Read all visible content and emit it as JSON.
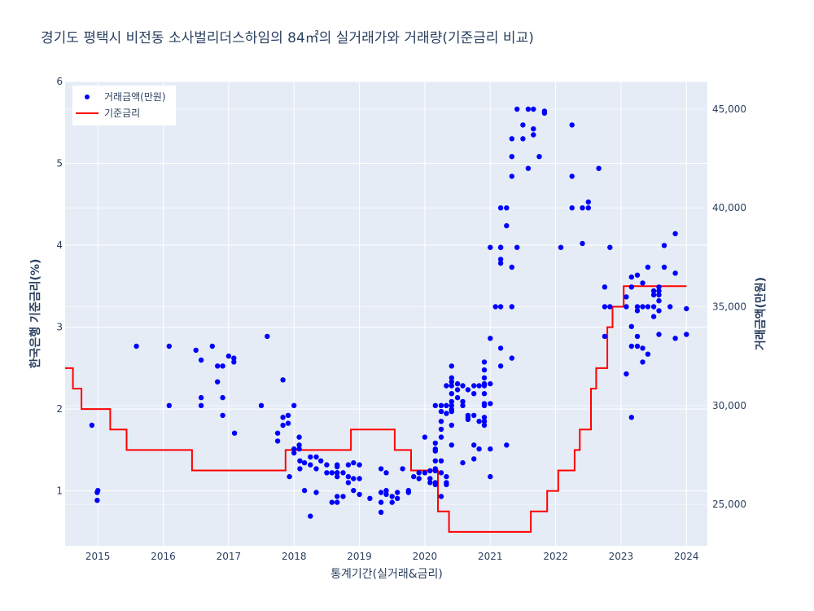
{
  "chart_data": {
    "type": "scatter+line",
    "title": "경기도 평택시 비전동 소사벌리더스하임의 84㎡의 실거래가와 거래량(기준금리 비교)",
    "xlabel": "통계기간(실거래&금리)",
    "ylabel_left": "한국은행 기준금리(%)",
    "ylabel_right": "거래금액(만원)",
    "x_range": [
      2014.5,
      2024.32
    ],
    "y_left_range": [
      0.33,
      6.0
    ],
    "y_right_range": [
      22900,
      46400
    ],
    "x_ticks": [
      2015,
      2016,
      2017,
      2018,
      2019,
      2020,
      2021,
      2022,
      2023,
      2024
    ],
    "x_tick_labels": [
      "2015",
      "2016",
      "2017",
      "2018",
      "2019",
      "2020",
      "2021",
      "2022",
      "2023",
      "2024"
    ],
    "y_left_ticks": [
      1,
      2,
      3,
      4,
      5,
      6
    ],
    "y_left_tick_labels": [
      "1",
      "2",
      "3",
      "4",
      "5",
      "6"
    ],
    "y_right_ticks": [
      25000,
      30000,
      35000,
      40000,
      45000
    ],
    "y_right_tick_labels": [
      "25,000",
      "30,000",
      "35,000",
      "40,000",
      "45,000"
    ],
    "grid": true,
    "legend_position": "top-left",
    "series": [
      {
        "name": "거래금액(만원)",
        "type": "scatter",
        "axis": "right",
        "color": "#0000ff",
        "points": [
          [
            2014.91,
            29000
          ],
          [
            2014.99,
            25200
          ],
          [
            2014.99,
            25600
          ],
          [
            2015.0,
            25700
          ],
          [
            2015.59,
            33000
          ],
          [
            2016.09,
            33000
          ],
          [
            2016.09,
            30000
          ],
          [
            2016.5,
            32800
          ],
          [
            2016.58,
            32300
          ],
          [
            2016.58,
            30000
          ],
          [
            2016.58,
            30400
          ],
          [
            2016.75,
            33000
          ],
          [
            2016.83,
            31200
          ],
          [
            2016.83,
            32000
          ],
          [
            2016.91,
            32000
          ],
          [
            2016.91,
            30400
          ],
          [
            2016.91,
            29500
          ],
          [
            2017.0,
            32500
          ],
          [
            2017.08,
            32400
          ],
          [
            2017.08,
            32200
          ],
          [
            2017.09,
            28600
          ],
          [
            2017.5,
            30000
          ],
          [
            2017.59,
            33500
          ],
          [
            2017.75,
            28600
          ],
          [
            2017.75,
            28200
          ],
          [
            2017.83,
            31300
          ],
          [
            2017.83,
            29400
          ],
          [
            2017.83,
            29000
          ],
          [
            2017.91,
            29500
          ],
          [
            2017.91,
            29100
          ],
          [
            2017.93,
            26400
          ],
          [
            2018.0,
            30000
          ],
          [
            2018.0,
            27800
          ],
          [
            2018.0,
            27600
          ],
          [
            2018.08,
            28000
          ],
          [
            2018.08,
            28400
          ],
          [
            2018.08,
            27800
          ],
          [
            2018.09,
            27200
          ],
          [
            2018.09,
            26800
          ],
          [
            2018.16,
            25700
          ],
          [
            2018.16,
            27100
          ],
          [
            2018.25,
            24400
          ],
          [
            2018.25,
            27000
          ],
          [
            2018.25,
            27400
          ],
          [
            2018.34,
            27400
          ],
          [
            2018.34,
            26800
          ],
          [
            2018.34,
            25600
          ],
          [
            2018.41,
            27200
          ],
          [
            2018.5,
            27000
          ],
          [
            2018.5,
            26600
          ],
          [
            2018.58,
            25100
          ],
          [
            2018.58,
            26600
          ],
          [
            2018.66,
            26400
          ],
          [
            2018.66,
            26600
          ],
          [
            2018.66,
            26900
          ],
          [
            2018.66,
            27000
          ],
          [
            2018.66,
            26600
          ],
          [
            2018.66,
            25400
          ],
          [
            2018.66,
            25100
          ],
          [
            2018.75,
            26600
          ],
          [
            2018.75,
            25400
          ],
          [
            2018.83,
            27000
          ],
          [
            2018.83,
            26400
          ],
          [
            2018.83,
            26100
          ],
          [
            2018.91,
            27100
          ],
          [
            2018.91,
            26300
          ],
          [
            2018.91,
            25700
          ],
          [
            2019.0,
            27000
          ],
          [
            2019.0,
            26300
          ],
          [
            2019.0,
            25500
          ],
          [
            2019.16,
            25300
          ],
          [
            2019.33,
            26800
          ],
          [
            2019.33,
            25600
          ],
          [
            2019.33,
            25100
          ],
          [
            2019.33,
            24600
          ],
          [
            2019.41,
            26600
          ],
          [
            2019.41,
            25700
          ],
          [
            2019.41,
            25500
          ],
          [
            2019.5,
            25100
          ],
          [
            2019.5,
            25400
          ],
          [
            2019.58,
            25300
          ],
          [
            2019.58,
            25600
          ],
          [
            2019.66,
            26800
          ],
          [
            2019.75,
            25600
          ],
          [
            2019.75,
            25700
          ],
          [
            2019.83,
            26400
          ],
          [
            2019.91,
            26300
          ],
          [
            2019.91,
            26600
          ],
          [
            2020.0,
            26600
          ],
          [
            2020.0,
            28400
          ],
          [
            2020.08,
            26300
          ],
          [
            2020.08,
            26700
          ],
          [
            2020.08,
            26100
          ],
          [
            2020.16,
            26700
          ],
          [
            2020.16,
            26100
          ],
          [
            2020.16,
            26000
          ],
          [
            2020.16,
            26800
          ],
          [
            2020.16,
            27200
          ],
          [
            2020.16,
            27700
          ],
          [
            2020.16,
            28100
          ],
          [
            2020.16,
            27800
          ],
          [
            2020.16,
            30000
          ],
          [
            2020.25,
            30000
          ],
          [
            2020.25,
            27200
          ],
          [
            2020.25,
            26600
          ],
          [
            2020.25,
            25400
          ],
          [
            2020.25,
            28800
          ],
          [
            2020.25,
            29200
          ],
          [
            2020.25,
            29700
          ],
          [
            2020.25,
            28400
          ],
          [
            2020.33,
            31000
          ],
          [
            2020.33,
            26400
          ],
          [
            2020.33,
            26100
          ],
          [
            2020.33,
            26000
          ],
          [
            2020.33,
            30000
          ],
          [
            2020.33,
            29600
          ],
          [
            2020.41,
            29700
          ],
          [
            2020.41,
            29800
          ],
          [
            2020.41,
            30000
          ],
          [
            2020.41,
            30200
          ],
          [
            2020.41,
            30600
          ],
          [
            2020.41,
            31000
          ],
          [
            2020.41,
            31200
          ],
          [
            2020.41,
            31400
          ],
          [
            2020.41,
            32000
          ],
          [
            2020.41,
            29000
          ],
          [
            2020.41,
            28000
          ],
          [
            2020.5,
            31100
          ],
          [
            2020.5,
            30800
          ],
          [
            2020.5,
            30400
          ],
          [
            2020.58,
            30200
          ],
          [
            2020.58,
            31000
          ],
          [
            2020.58,
            27100
          ],
          [
            2020.58,
            30000
          ],
          [
            2020.66,
            29400
          ],
          [
            2020.66,
            29300
          ],
          [
            2020.66,
            30800
          ],
          [
            2020.66,
            29500
          ],
          [
            2020.75,
            29500
          ],
          [
            2020.75,
            28000
          ],
          [
            2020.75,
            27300
          ],
          [
            2020.75,
            30600
          ],
          [
            2020.75,
            31000
          ],
          [
            2020.83,
            31000
          ],
          [
            2020.83,
            29200
          ],
          [
            2020.83,
            27800
          ],
          [
            2020.91,
            29200
          ],
          [
            2020.91,
            29000
          ],
          [
            2020.91,
            30000
          ],
          [
            2020.91,
            30600
          ],
          [
            2020.91,
            31000
          ],
          [
            2020.91,
            31100
          ],
          [
            2020.91,
            31400
          ],
          [
            2020.91,
            31800
          ],
          [
            2020.91,
            32200
          ],
          [
            2020.91,
            30100
          ],
          [
            2020.91,
            29400
          ],
          [
            2021.0,
            30100
          ],
          [
            2021.0,
            31100
          ],
          [
            2021.0,
            33400
          ],
          [
            2021.0,
            27800
          ],
          [
            2021.0,
            26400
          ],
          [
            2021.0,
            38000
          ],
          [
            2021.08,
            35000
          ],
          [
            2021.16,
            32000
          ],
          [
            2021.16,
            32900
          ],
          [
            2021.16,
            35000
          ],
          [
            2021.16,
            37200
          ],
          [
            2021.16,
            37400
          ],
          [
            2021.16,
            38000
          ],
          [
            2021.16,
            38000
          ],
          [
            2021.16,
            40000
          ],
          [
            2021.25,
            40000
          ],
          [
            2021.25,
            39100
          ],
          [
            2021.25,
            28000
          ],
          [
            2021.33,
            32400
          ],
          [
            2021.33,
            35000
          ],
          [
            2021.33,
            37000
          ],
          [
            2021.33,
            41600
          ],
          [
            2021.33,
            42600
          ],
          [
            2021.33,
            43500
          ],
          [
            2021.41,
            45000
          ],
          [
            2021.41,
            38000
          ],
          [
            2021.5,
            43500
          ],
          [
            2021.5,
            44200
          ],
          [
            2021.58,
            42000
          ],
          [
            2021.58,
            45000
          ],
          [
            2021.66,
            45000
          ],
          [
            2021.66,
            44000
          ],
          [
            2021.66,
            43700
          ],
          [
            2021.75,
            42600
          ],
          [
            2021.83,
            44900
          ],
          [
            2021.83,
            44800
          ],
          [
            2022.08,
            38000
          ],
          [
            2022.25,
            44200
          ],
          [
            2022.25,
            41600
          ],
          [
            2022.25,
            40000
          ],
          [
            2022.41,
            38200
          ],
          [
            2022.41,
            40000
          ],
          [
            2022.5,
            40000
          ],
          [
            2022.5,
            40300
          ],
          [
            2022.66,
            42000
          ],
          [
            2022.75,
            35000
          ],
          [
            2022.75,
            33500
          ],
          [
            2022.75,
            36000
          ],
          [
            2022.83,
            35000
          ],
          [
            2022.83,
            38000
          ],
          [
            2023.08,
            31600
          ],
          [
            2023.08,
            35500
          ],
          [
            2023.08,
            35000
          ],
          [
            2023.16,
            29400
          ],
          [
            2023.16,
            34000
          ],
          [
            2023.16,
            33000
          ],
          [
            2023.16,
            36500
          ],
          [
            2023.16,
            36000
          ],
          [
            2023.25,
            33000
          ],
          [
            2023.25,
            33500
          ],
          [
            2023.25,
            35000
          ],
          [
            2023.25,
            34800
          ],
          [
            2023.25,
            36600
          ],
          [
            2023.33,
            36200
          ],
          [
            2023.33,
            32900
          ],
          [
            2023.33,
            32200
          ],
          [
            2023.33,
            35000
          ],
          [
            2023.41,
            32600
          ],
          [
            2023.41,
            35000
          ],
          [
            2023.41,
            37000
          ],
          [
            2023.5,
            35800
          ],
          [
            2023.5,
            35600
          ],
          [
            2023.5,
            34500
          ],
          [
            2023.5,
            35000
          ],
          [
            2023.58,
            35800
          ],
          [
            2023.58,
            36000
          ],
          [
            2023.58,
            35300
          ],
          [
            2023.58,
            35600
          ],
          [
            2023.58,
            34800
          ],
          [
            2023.58,
            33600
          ],
          [
            2023.66,
            37000
          ],
          [
            2023.66,
            38100
          ],
          [
            2023.75,
            35000
          ],
          [
            2023.83,
            33400
          ],
          [
            2023.83,
            36700
          ],
          [
            2023.83,
            38700
          ],
          [
            2024.0,
            33600
          ],
          [
            2024.0,
            34900
          ]
        ]
      },
      {
        "name": "기준금리",
        "type": "line",
        "shape": "step",
        "axis": "left",
        "color": "#ff0000",
        "points": [
          [
            2014.5,
            2.5
          ],
          [
            2014.62,
            2.5
          ],
          [
            2014.62,
            2.25
          ],
          [
            2014.75,
            2.25
          ],
          [
            2014.75,
            2.0
          ],
          [
            2015.19,
            2.0
          ],
          [
            2015.19,
            1.75
          ],
          [
            2015.44,
            1.75
          ],
          [
            2015.44,
            1.5
          ],
          [
            2016.44,
            1.5
          ],
          [
            2016.44,
            1.25
          ],
          [
            2017.87,
            1.25
          ],
          [
            2017.87,
            1.5
          ],
          [
            2018.87,
            1.5
          ],
          [
            2018.87,
            1.75
          ],
          [
            2019.54,
            1.75
          ],
          [
            2019.54,
            1.5
          ],
          [
            2019.79,
            1.5
          ],
          [
            2019.79,
            1.25
          ],
          [
            2020.2,
            1.25
          ],
          [
            2020.2,
            0.75
          ],
          [
            2020.37,
            0.75
          ],
          [
            2020.37,
            0.5
          ],
          [
            2021.62,
            0.5
          ],
          [
            2021.62,
            0.75
          ],
          [
            2021.87,
            0.75
          ],
          [
            2021.87,
            1.0
          ],
          [
            2022.04,
            1.0
          ],
          [
            2022.04,
            1.25
          ],
          [
            2022.29,
            1.25
          ],
          [
            2022.29,
            1.5
          ],
          [
            2022.37,
            1.5
          ],
          [
            2022.37,
            1.75
          ],
          [
            2022.54,
            1.75
          ],
          [
            2022.54,
            2.25
          ],
          [
            2022.62,
            2.25
          ],
          [
            2022.62,
            2.5
          ],
          [
            2022.79,
            2.5
          ],
          [
            2022.79,
            3.0
          ],
          [
            2022.87,
            3.0
          ],
          [
            2022.87,
            3.25
          ],
          [
            2023.04,
            3.25
          ],
          [
            2023.04,
            3.5
          ],
          [
            2024.0,
            3.5
          ]
        ]
      }
    ]
  }
}
